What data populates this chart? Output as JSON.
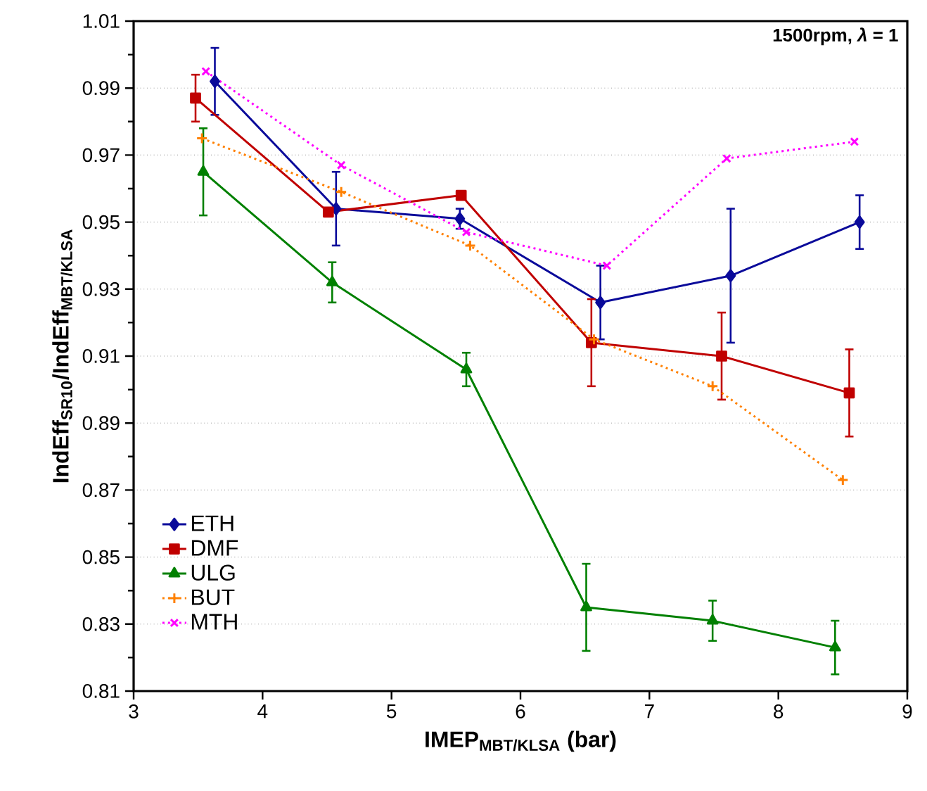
{
  "chart_data": {
    "type": "line",
    "title": "1500rpm, *λ* = 1",
    "xlabel": "IMEP$_{MBT/KLSA}$ (bar)",
    "ylabel": "IndEff$_{SR10}$/IndEff$_{MBT/KLSA}$",
    "xlim": [
      3,
      9
    ],
    "xticks": [
      3,
      4,
      5,
      6,
      7,
      8,
      9
    ],
    "ylim": [
      0.81,
      1.01
    ],
    "yticks": [
      0.81,
      0.83,
      0.85,
      0.87,
      0.89,
      0.91,
      0.93,
      0.95,
      0.97,
      0.99,
      1.01
    ],
    "grid": "y",
    "legend": "bottom left",
    "series": [
      {
        "name": "ETH",
        "color": "#0a0a9a",
        "marker": "diamond",
        "line_style": "solid",
        "x": [
          3.63,
          4.57,
          5.53,
          6.62,
          7.63,
          8.63
        ],
        "values": [
          0.992,
          0.954,
          0.951,
          0.926,
          0.934,
          0.95
        ],
        "errors": [
          0.01,
          0.011,
          0.003,
          0.011,
          0.02,
          0.008
        ]
      },
      {
        "name": "DMF",
        "color": "#c00000",
        "marker": "square",
        "line_style": "solid",
        "x": [
          3.48,
          4.51,
          5.54,
          6.55,
          7.56,
          8.55
        ],
        "values": [
          0.987,
          0.953,
          0.958,
          0.914,
          0.91,
          0.899
        ],
        "errors": [
          0.007,
          null,
          null,
          0.013,
          0.013,
          0.013
        ]
      },
      {
        "name": "ULG",
        "color": "#008000",
        "marker": "triangle",
        "line_style": "solid",
        "x": [
          3.54,
          4.54,
          5.58,
          6.51,
          7.49,
          8.44
        ],
        "values": [
          0.965,
          0.932,
          0.906,
          0.835,
          0.831,
          0.823
        ],
        "errors": [
          0.013,
          0.006,
          0.005,
          0.013,
          0.006,
          0.008
        ]
      },
      {
        "name": "BUT",
        "color": "#ff8000",
        "marker": "plus",
        "line_style": "dotted",
        "x": [
          3.53,
          4.61,
          5.61,
          6.57,
          7.49,
          8.5
        ],
        "values": [
          0.975,
          0.959,
          0.943,
          0.915,
          0.901,
          0.873
        ]
      },
      {
        "name": "MTH",
        "color": "#ff00ff",
        "marker": "cross",
        "line_style": "dotted",
        "x": [
          3.56,
          4.61,
          5.58,
          6.67,
          7.6,
          8.59
        ],
        "values": [
          0.995,
          0.967,
          0.947,
          0.937,
          0.969,
          0.974
        ]
      }
    ]
  }
}
